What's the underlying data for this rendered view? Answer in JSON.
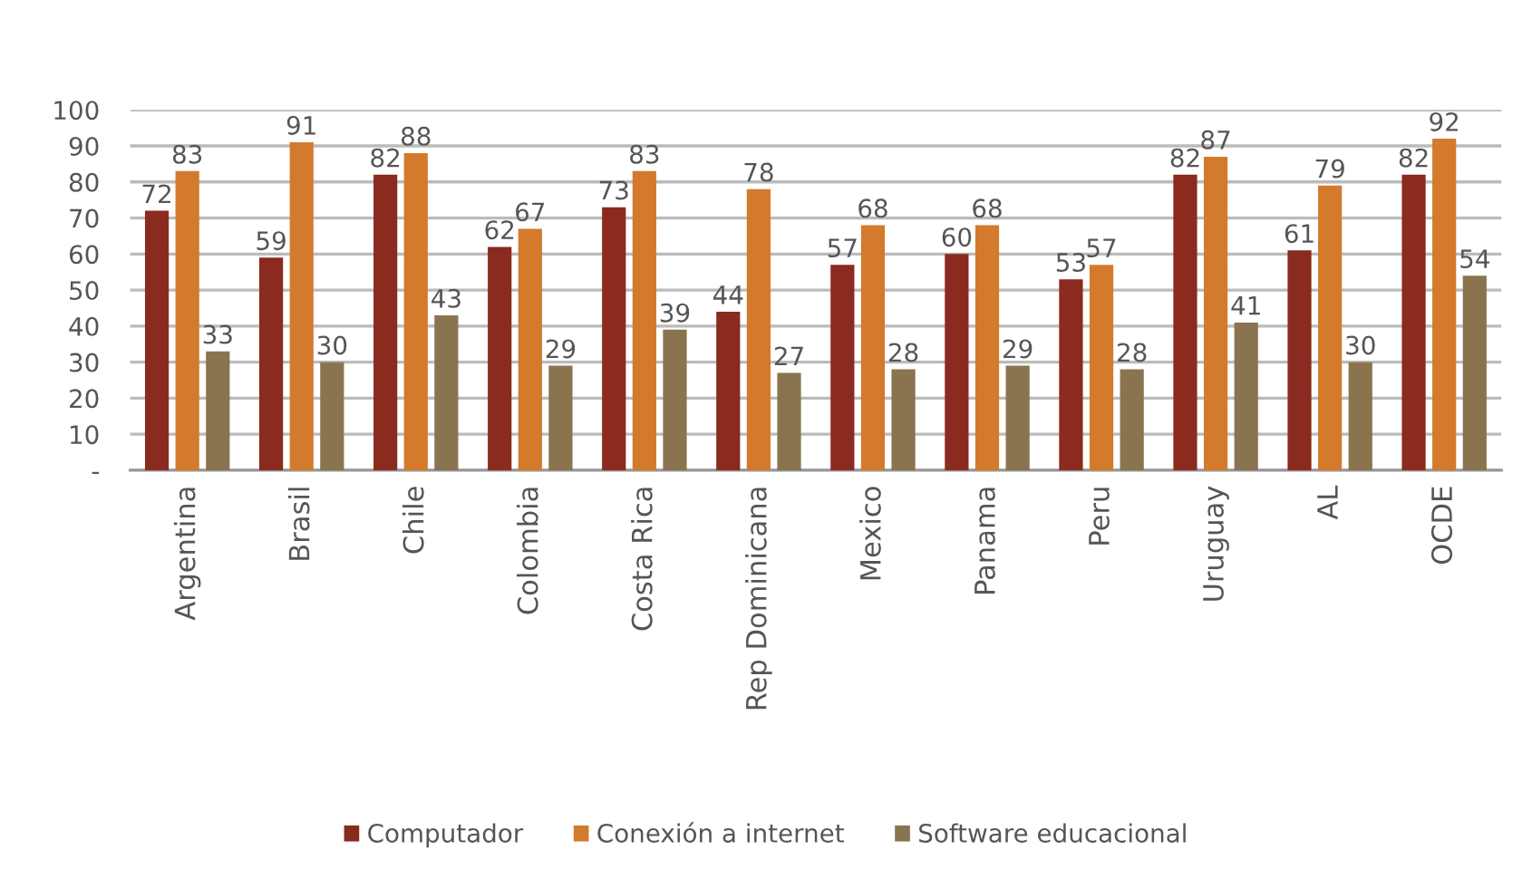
{
  "chart_data": {
    "type": "bar",
    "categories": [
      "Argentina",
      "Brasil",
      "Chile",
      "Colombia",
      "Costa Rica",
      "Rep Dominicana",
      "Mexico",
      "Panama",
      "Peru",
      "Uruguay",
      "AL",
      "OCDE"
    ],
    "series": [
      {
        "name": "Computador",
        "color": "#8b2a1e",
        "values": [
          72,
          59,
          82,
          62,
          73,
          44,
          57,
          60,
          53,
          82,
          61,
          82
        ]
      },
      {
        "name": "Conexión a internet",
        "color": "#d47a2c",
        "values": [
          83,
          91,
          88,
          67,
          83,
          78,
          68,
          68,
          57,
          87,
          79,
          92
        ]
      },
      {
        "name": "Software educacional",
        "color": "#8a7450",
        "values": [
          33,
          30,
          43,
          29,
          39,
          27,
          28,
          29,
          28,
          41,
          30,
          54
        ]
      }
    ],
    "ylim": [
      0,
      100
    ],
    "yticks": [
      {
        "value": 0,
        "label": "-"
      },
      10,
      20,
      30,
      40,
      50,
      60,
      70,
      80,
      90,
      100
    ],
    "grid": "y",
    "legend": "bottom",
    "data_labels": true
  }
}
